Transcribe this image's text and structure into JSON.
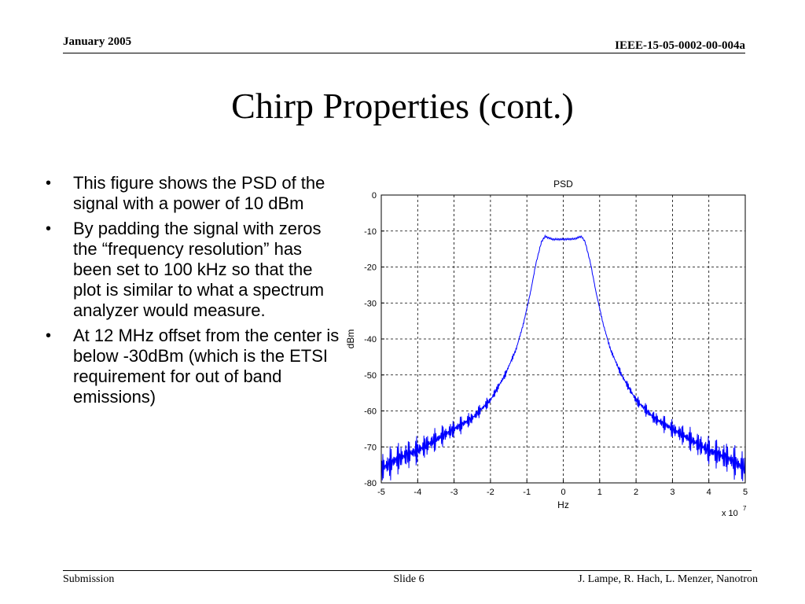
{
  "header": {
    "date": "January 2005",
    "doc_id": "IEEE-15-05-0002-00-004a"
  },
  "slide": {
    "title": "Chirp Properties (cont.)",
    "bullets": [
      "This figure shows the PSD of the signal with a power of 10 dBm",
      "By padding the signal with zeros the “frequency resolution” has been set to 100 kHz so that the plot is similar to what a spectrum analyzer would measure.",
      "At 12 MHz offset from the center is below -30dBm (which is the ETSI requirement for out of band emissions)"
    ]
  },
  "footer": {
    "left": "Submission",
    "center": "Slide 6",
    "right": "J. Lampe, R. Hach, L. Menzer, Nanotron"
  },
  "chart_data": {
    "type": "line",
    "title": "PSD",
    "xlabel": "Hz",
    "ylabel": "dBm",
    "x_multiplier_label": "x 10",
    "x_multiplier_exp": "7",
    "xlim": [
      -5,
      5
    ],
    "ylim": [
      -80,
      0
    ],
    "xticks": [
      -5,
      -4,
      -3,
      -2,
      -1,
      0,
      1,
      2,
      3,
      4,
      5
    ],
    "yticks": [
      0,
      -10,
      -20,
      -30,
      -40,
      -50,
      -60,
      -70,
      -80
    ],
    "grid": true,
    "line_color": "#0000ff",
    "series": [
      {
        "x": [
          -5,
          -4.5,
          -4,
          -3.5,
          -3,
          -2.5,
          -2,
          -1.6,
          -1.3,
          -1.1,
          -0.9,
          -0.75,
          -0.6,
          -0.5,
          -0.3,
          0,
          0.3,
          0.5,
          0.6,
          0.75,
          0.9,
          1.1,
          1.3,
          1.6,
          2,
          2.5,
          3,
          3.5,
          4,
          4.5,
          5
        ],
        "values": [
          -76,
          -73,
          -71,
          -68,
          -65,
          -62,
          -57,
          -50,
          -43,
          -36,
          -27,
          -19,
          -13,
          -11.5,
          -12.3,
          -12.3,
          -12.2,
          -11.5,
          -13,
          -19,
          -27,
          -36,
          -43,
          -50,
          -57,
          -62,
          -65,
          -68,
          -71,
          -73,
          -76
        ]
      }
    ]
  }
}
